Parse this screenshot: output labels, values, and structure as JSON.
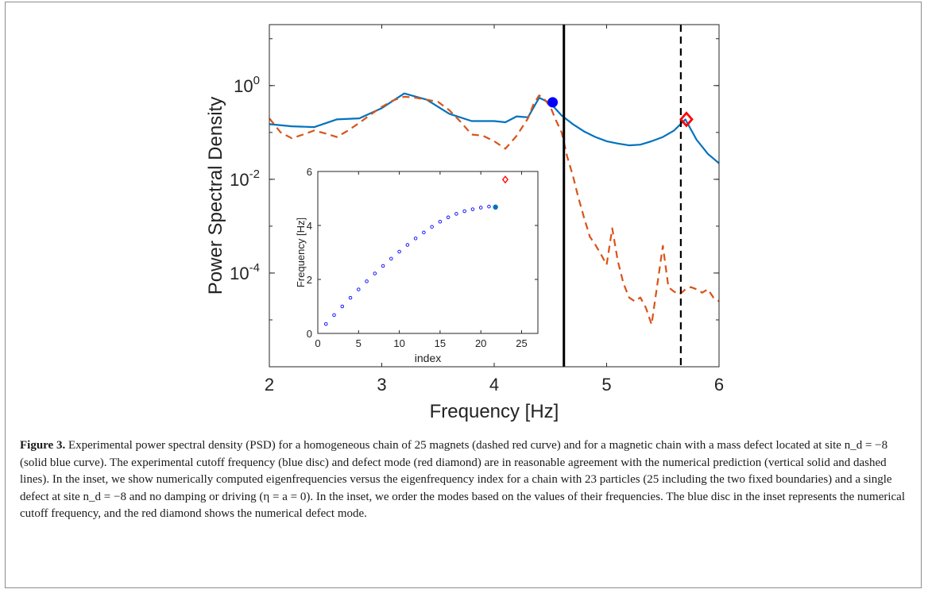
{
  "chart_data": [
    {
      "type": "line",
      "title": "",
      "xlabel": "Frequency [Hz]",
      "ylabel": "Power Spectral Density",
      "xlim": [
        2,
        6
      ],
      "ylim": [
        1e-06,
        20
      ],
      "yscale": "log",
      "xticks": [
        2,
        3,
        4,
        5,
        6
      ],
      "xtick_labels": [
        "2",
        "3",
        "4",
        "5",
        "6"
      ],
      "yticks": [
        0.0001,
        0.01,
        1
      ],
      "ytick_labels": [
        {
          "base": "10",
          "exp": "-4"
        },
        {
          "base": "10",
          "exp": "-2"
        },
        {
          "base": "10",
          "exp": "0"
        }
      ],
      "grid": false,
      "legend": "none",
      "series": [
        {
          "color": "#0072BD",
          "style": "solid",
          "x": [
            2.0,
            2.2,
            2.4,
            2.6,
            2.8,
            3.0,
            3.2,
            3.4,
            3.6,
            3.8,
            4.0,
            4.1,
            4.2,
            4.3,
            4.4,
            4.5,
            4.6,
            4.7,
            4.8,
            4.9,
            5.0,
            5.1,
            5.2,
            5.3,
            5.4,
            5.5,
            5.6,
            5.7,
            5.8,
            5.9,
            6.0
          ],
          "y": [
            0.15,
            0.135,
            0.13,
            0.19,
            0.2,
            0.33,
            0.68,
            0.5,
            0.25,
            0.175,
            0.175,
            0.165,
            0.22,
            0.21,
            0.55,
            0.42,
            0.23,
            0.15,
            0.105,
            0.08,
            0.065,
            0.058,
            0.053,
            0.055,
            0.065,
            0.08,
            0.11,
            0.19,
            0.07,
            0.035,
            0.022
          ]
        },
        {
          "color": "#D95319",
          "style": "dashed",
          "x": [
            2.0,
            2.1,
            2.2,
            2.3,
            2.4,
            2.5,
            2.6,
            2.7,
            2.8,
            2.9,
            3.0,
            3.1,
            3.2,
            3.3,
            3.4,
            3.5,
            3.6,
            3.7,
            3.8,
            3.9,
            4.0,
            4.1,
            4.2,
            4.3,
            4.35,
            4.4,
            4.45,
            4.5,
            4.55,
            4.6,
            4.65,
            4.7,
            4.75,
            4.8,
            4.85,
            4.9,
            4.95,
            5.0,
            5.05,
            5.1,
            5.15,
            5.2,
            5.25,
            5.3,
            5.35,
            5.4,
            5.45,
            5.5,
            5.55,
            5.6,
            5.65,
            5.7,
            5.75,
            5.8,
            5.85,
            5.9,
            5.95,
            6.0
          ],
          "y": [
            0.2,
            0.1,
            0.075,
            0.09,
            0.11,
            0.095,
            0.08,
            0.11,
            0.16,
            0.24,
            0.35,
            0.48,
            0.58,
            0.55,
            0.5,
            0.45,
            0.3,
            0.17,
            0.09,
            0.085,
            0.065,
            0.045,
            0.085,
            0.2,
            0.4,
            0.62,
            0.5,
            0.35,
            0.18,
            0.1,
            0.03,
            0.012,
            0.004,
            0.0015,
            0.0006,
            0.0004,
            0.00025,
            0.00015,
            0.0009,
            0.00018,
            6e-05,
            3e-05,
            2.5e-05,
            3e-05,
            1.8e-05,
            8e-06,
            5.5e-05,
            0.00038,
            5e-05,
            4e-05,
            3.5e-05,
            4.5e-05,
            5e-05,
            4.5e-05,
            3.8e-05,
            4.5e-05,
            3e-05,
            2.5e-05
          ]
        }
      ],
      "markers": [
        {
          "shape": "disc",
          "x": 4.52,
          "y": 0.44,
          "color": "#0000FF"
        },
        {
          "shape": "diamond",
          "x": 5.71,
          "y": 0.19,
          "color": "#FF0000"
        }
      ],
      "vlines": [
        {
          "x": 4.62,
          "style": "solid",
          "color": "#000000"
        },
        {
          "x": 5.66,
          "style": "dashed",
          "color": "#000000"
        }
      ]
    },
    {
      "type": "scatter",
      "title": "",
      "xlabel": "index",
      "ylabel": "Frequency [Hz]",
      "xlim": [
        0,
        27
      ],
      "ylim": [
        0,
        6
      ],
      "xticks": [
        0,
        5,
        10,
        15,
        20,
        25
      ],
      "yticks": [
        0,
        2,
        4,
        6
      ],
      "grid": false,
      "legend": "none",
      "series": [
        {
          "marker": "open-circle",
          "color": "#0000FF",
          "x": [
            1,
            2,
            3,
            4,
            5,
            6,
            7,
            8,
            9,
            10,
            11,
            12,
            13,
            14,
            15,
            16,
            17,
            18,
            19,
            20,
            21
          ],
          "y": [
            0.35,
            0.68,
            1.0,
            1.32,
            1.63,
            1.93,
            2.22,
            2.5,
            2.77,
            3.03,
            3.28,
            3.52,
            3.74,
            3.95,
            4.14,
            4.3,
            4.43,
            4.53,
            4.6,
            4.66,
            4.7
          ]
        }
      ],
      "markers": [
        {
          "shape": "disc",
          "x": 21.8,
          "y": 4.68,
          "color": "#0072BD"
        },
        {
          "shape": "diamond",
          "x": 23,
          "y": 5.7,
          "color": "#FF0000"
        }
      ]
    }
  ],
  "caption": {
    "label": "Figure 3.",
    "text": "Experimental power spectral density (PSD) for a homogeneous chain of 25 magnets (dashed red curve) and for a magnetic chain with a mass defect located at site n_d = −8 (solid blue curve). The experimental cutoff frequency (blue disc) and defect mode (red diamond) are in reasonable agreement with the numerical prediction (vertical solid and dashed lines). In the inset, we show numerically computed eigenfrequencies versus the eigenfrequency index for a chain with 23 particles (25 including the two fixed boundaries) and a single defect at site n_d = −8 and no damping or driving (η = a = 0). In the inset, we order the modes based on the values of their frequencies. The blue disc in the inset represents the numerical cutoff frequency, and the red diamond shows the numerical defect mode."
  }
}
